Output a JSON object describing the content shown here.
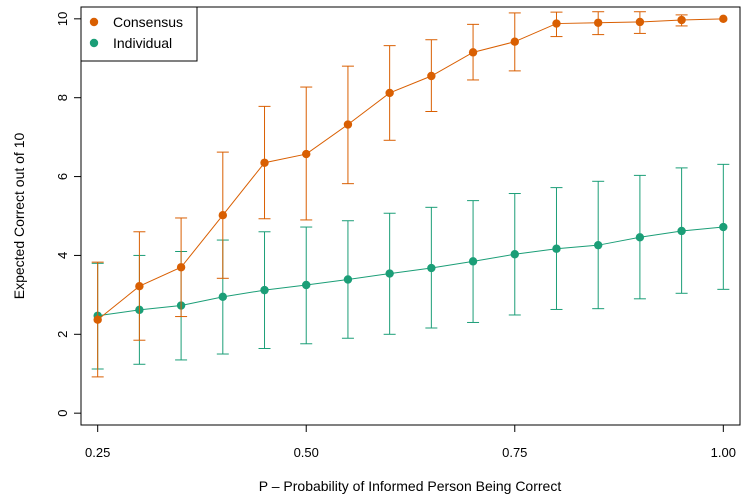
{
  "chart_data": {
    "type": "line",
    "xlabel": "P –  Probability of Informed Person Being Correct",
    "ylabel": "Expected Correct out of 10",
    "xlim": [
      0.23,
      1.02
    ],
    "ylim": [
      -0.3,
      10.3
    ],
    "x_ticks": [
      0.25,
      0.5,
      0.75,
      1.0
    ],
    "x_tick_labels": [
      "0.25",
      "0.50",
      "0.75",
      "1.00"
    ],
    "y_ticks": [
      0,
      2,
      4,
      6,
      8,
      10
    ],
    "y_tick_labels": [
      "0",
      "2",
      "4",
      "6",
      "8",
      "10"
    ],
    "grid": false,
    "legend_position": "top-left",
    "x": [
      0.25,
      0.3,
      0.35,
      0.4,
      0.45,
      0.5,
      0.55,
      0.6,
      0.65,
      0.7,
      0.75,
      0.8,
      0.85,
      0.9,
      0.95,
      1.0
    ],
    "series": [
      {
        "name": "Consensus",
        "color": "#D95F02",
        "values": [
          2.37,
          3.22,
          3.7,
          5.02,
          6.35,
          6.57,
          7.32,
          8.12,
          8.55,
          9.15,
          9.42,
          9.88,
          9.9,
          9.92,
          9.97,
          10.0
        ],
        "lower": [
          0.92,
          1.85,
          2.45,
          3.42,
          4.93,
          4.9,
          5.82,
          6.92,
          7.65,
          8.45,
          8.68,
          9.55,
          9.6,
          9.63,
          9.82,
          10.0
        ],
        "upper": [
          3.83,
          4.6,
          4.95,
          6.62,
          7.78,
          8.27,
          8.8,
          9.32,
          9.47,
          9.86,
          10.15,
          10.17,
          10.18,
          10.18,
          10.1,
          10.0
        ]
      },
      {
        "name": "Individual",
        "color": "#1B9E77",
        "values": [
          2.47,
          2.62,
          2.73,
          2.95,
          3.12,
          3.25,
          3.39,
          3.54,
          3.68,
          3.85,
          4.03,
          4.17,
          4.26,
          4.46,
          4.62,
          4.72
        ],
        "lower": [
          1.12,
          1.24,
          1.35,
          1.5,
          1.64,
          1.76,
          1.9,
          2.0,
          2.16,
          2.3,
          2.49,
          2.63,
          2.65,
          2.9,
          3.04,
          3.14
        ],
        "upper": [
          3.8,
          4.0,
          4.1,
          4.39,
          4.6,
          4.72,
          4.88,
          5.07,
          5.22,
          5.39,
          5.57,
          5.72,
          5.88,
          6.03,
          6.22,
          6.31
        ]
      }
    ]
  }
}
